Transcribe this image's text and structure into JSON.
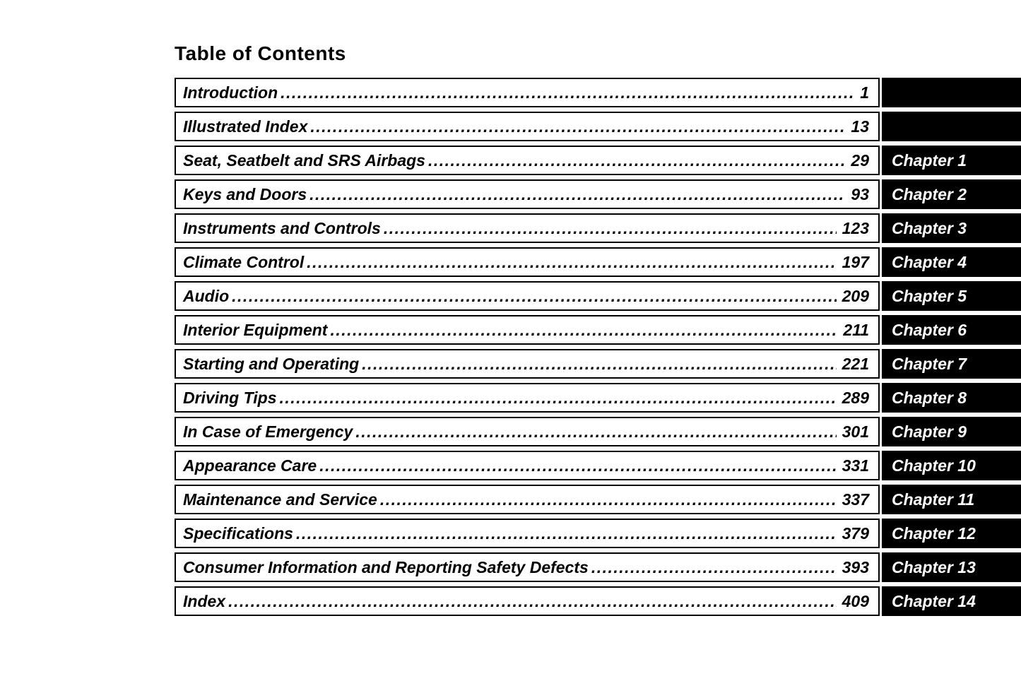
{
  "page_title": "Table of Contents",
  "colors": {
    "background": "#ffffff",
    "text": "#000000",
    "row_border": "#000000",
    "chapter_bg": "#000000",
    "chapter_text": "#ffffff"
  },
  "toc": {
    "rows": [
      {
        "title": "Introduction",
        "page": "1",
        "chapter": ""
      },
      {
        "title": "Illustrated Index",
        "page": "13",
        "chapter": ""
      },
      {
        "title": "Seat, Seatbelt and SRS Airbags",
        "page": "29",
        "chapter": "Chapter 1"
      },
      {
        "title": "Keys and Doors",
        "page": "93",
        "chapter": "Chapter 2"
      },
      {
        "title": "Instruments and Controls",
        "page": "123",
        "chapter": "Chapter 3"
      },
      {
        "title": "Climate Control",
        "page": "197",
        "chapter": "Chapter 4"
      },
      {
        "title": "Audio",
        "page": "209",
        "chapter": "Chapter 5"
      },
      {
        "title": "Interior Equipment",
        "page": "211",
        "chapter": "Chapter 6"
      },
      {
        "title": "Starting and Operating",
        "page": "221",
        "chapter": "Chapter 7"
      },
      {
        "title": "Driving Tips",
        "page": "289",
        "chapter": "Chapter 8"
      },
      {
        "title": "In Case of Emergency",
        "page": "301",
        "chapter": "Chapter 9"
      },
      {
        "title": "Appearance Care",
        "page": "331",
        "chapter": "Chapter 10"
      },
      {
        "title": "Maintenance and Service",
        "page": "337",
        "chapter": "Chapter 11"
      },
      {
        "title": "Specifications",
        "page": "379",
        "chapter": "Chapter 12"
      },
      {
        "title": "Consumer Information and Reporting Safety Defects",
        "page": "393",
        "chapter": "Chapter 13"
      },
      {
        "title": "Index",
        "page": "409",
        "chapter": "Chapter 14"
      }
    ]
  }
}
